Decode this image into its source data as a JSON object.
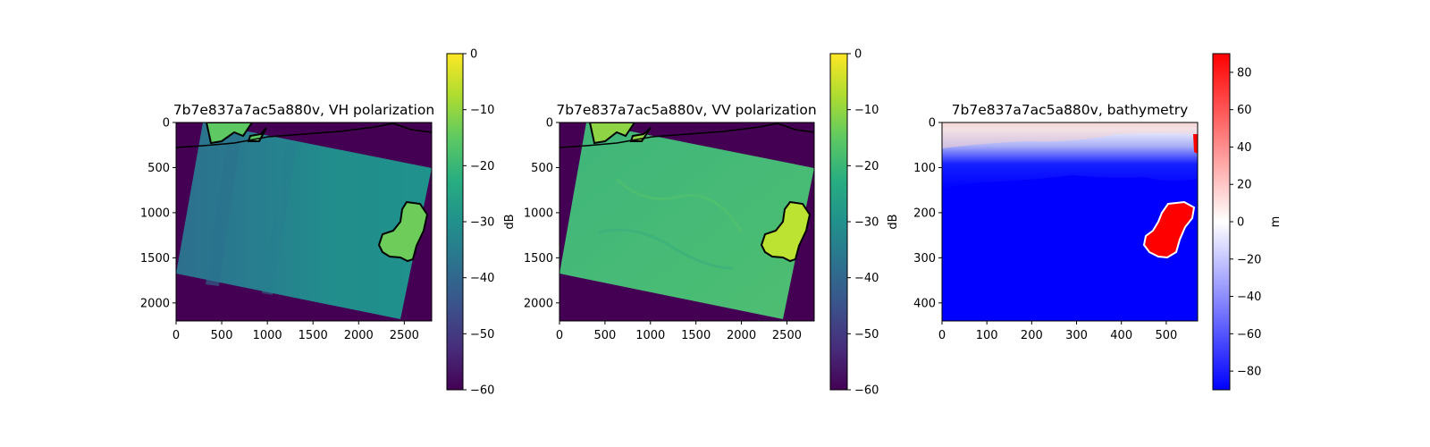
{
  "chart_data": [
    {
      "type": "heatmap",
      "title": "7b7e837a7ac5a880v, VH polarization",
      "xlim": [
        0,
        2800
      ],
      "ylim": [
        2200,
        0
      ],
      "x_ticks": [
        0,
        500,
        1000,
        1500,
        2000,
        2500
      ],
      "y_ticks": [
        0,
        500,
        1000,
        1500,
        2000
      ],
      "colormap": "viridis",
      "colorbar": {
        "label": "dB",
        "range": [
          -60,
          0
        ],
        "ticks": [
          0,
          -10,
          -20,
          -30,
          -40,
          -50,
          -60
        ]
      },
      "swath_corners": [
        [
          300,
          0
        ],
        [
          2800,
          500
        ],
        [
          2460,
          2180
        ],
        [
          0,
          1680
        ]
      ],
      "swath_mean_db": -27,
      "land_mean_db": -14,
      "nodata_db": -60
    },
    {
      "type": "heatmap",
      "title": "7b7e837a7ac5a880v, VV polarization",
      "xlim": [
        0,
        2800
      ],
      "ylim": [
        2200,
        0
      ],
      "x_ticks": [
        0,
        500,
        1000,
        1500,
        2000,
        2500
      ],
      "y_ticks": [
        0,
        500,
        1000,
        1500,
        2000
      ],
      "colormap": "viridis",
      "colorbar": {
        "label": "dB",
        "range": [
          -60,
          0
        ],
        "ticks": [
          0,
          -10,
          -20,
          -30,
          -40,
          -50,
          -60
        ]
      },
      "swath_corners": [
        [
          300,
          0
        ],
        [
          2800,
          500
        ],
        [
          2460,
          2180
        ],
        [
          0,
          1680
        ]
      ],
      "swath_mean_db": -18,
      "land_mean_db": -9,
      "nodata_db": -60
    },
    {
      "type": "heatmap",
      "title": "7b7e837a7ac5a880v, bathymetry",
      "xlim": [
        0,
        570
      ],
      "ylim": [
        440,
        0
      ],
      "x_ticks": [
        0,
        100,
        200,
        300,
        400,
        500
      ],
      "y_ticks": [
        0,
        100,
        200,
        300,
        400
      ],
      "colormap": "bwr",
      "colorbar": {
        "label": "m",
        "range": [
          -90,
          90
        ],
        "ticks": [
          80,
          60,
          40,
          20,
          0,
          -20,
          -40,
          -60,
          -80
        ]
      },
      "deep_value_m": -90,
      "land_value_m": 90
    }
  ]
}
